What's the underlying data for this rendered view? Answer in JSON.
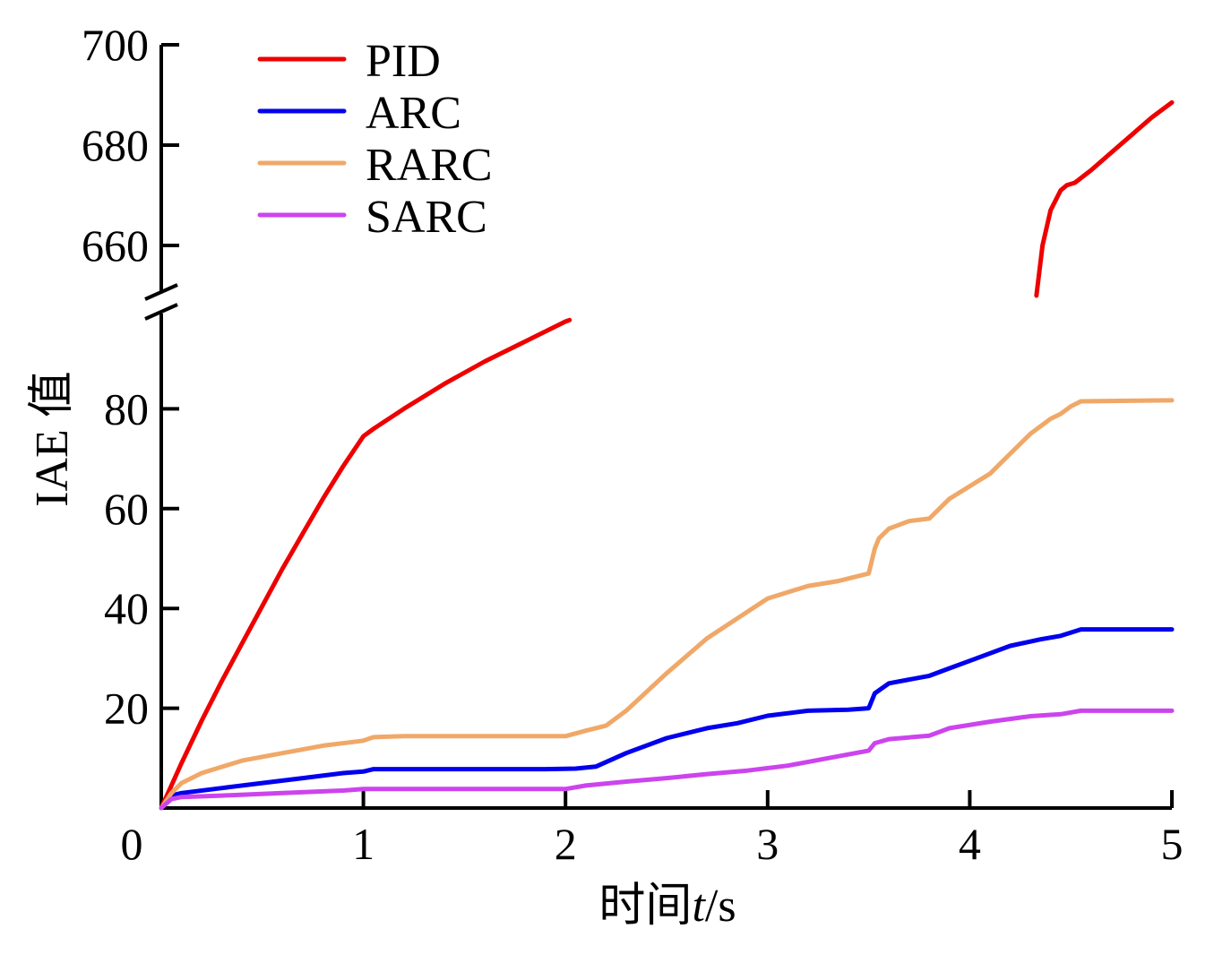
{
  "chart_data": {
    "type": "line",
    "xlabel_prefix": "时间",
    "xlabel_var": "t",
    "xlabel_suffix": "/s",
    "ylabel": "IAE 值",
    "xlim": [
      0,
      5
    ],
    "ylim_lower": [
      0,
      100
    ],
    "ylim_upper": [
      650,
      700
    ],
    "axis_break": true,
    "x_ticks": [
      0,
      1,
      2,
      3,
      4,
      5
    ],
    "x_tick_labels": [
      "0",
      "1",
      "2",
      "3",
      "4",
      "5"
    ],
    "y_ticks_lower": [
      20,
      40,
      60,
      80
    ],
    "y_tick_labels_lower": [
      "20",
      "40",
      "60",
      "80"
    ],
    "y_ticks_upper": [
      660,
      680,
      700
    ],
    "y_tick_labels_upper": [
      "660",
      "680",
      "700"
    ],
    "legend_position": "top-left",
    "series": [
      {
        "name": "PID",
        "color": "#ee0000",
        "segments": [
          [
            [
              0,
              0
            ],
            [
              0.1,
              9
            ],
            [
              0.2,
              17.5
            ],
            [
              0.3,
              25.5
            ],
            [
              0.4,
              33
            ],
            [
              0.5,
              40.5
            ],
            [
              0.6,
              48
            ],
            [
              0.7,
              55
            ],
            [
              0.8,
              62
            ],
            [
              0.9,
              68.5
            ],
            [
              1.0,
              74.5
            ],
            [
              1.05,
              76
            ],
            [
              1.2,
              80
            ],
            [
              1.4,
              85
            ],
            [
              1.6,
              89.5
            ],
            [
              1.8,
              93.5
            ],
            [
              2.0,
              97.5
            ],
            [
              2.02,
              97.8
            ]
          ],
          [
            [
              4.33,
              650
            ],
            [
              4.36,
              660
            ],
            [
              4.4,
              667
            ],
            [
              4.45,
              671
            ],
            [
              4.48,
              672
            ],
            [
              4.52,
              672.5
            ],
            [
              4.6,
              675
            ],
            [
              4.7,
              678.5
            ],
            [
              4.8,
              682
            ],
            [
              4.9,
              685.5
            ],
            [
              5.0,
              688.5
            ]
          ]
        ]
      },
      {
        "name": "ARC",
        "color": "#0000ee",
        "segments": [
          [
            [
              0,
              0
            ],
            [
              0.05,
              2.5
            ],
            [
              0.1,
              3
            ],
            [
              0.3,
              4
            ],
            [
              0.5,
              5
            ],
            [
              0.7,
              6
            ],
            [
              0.9,
              7
            ],
            [
              1.0,
              7.3
            ],
            [
              1.05,
              7.8
            ],
            [
              1.3,
              7.8
            ],
            [
              1.6,
              7.8
            ],
            [
              1.9,
              7.8
            ],
            [
              2.05,
              7.9
            ],
            [
              2.15,
              8.3
            ],
            [
              2.3,
              11
            ],
            [
              2.5,
              14
            ],
            [
              2.7,
              16
            ],
            [
              2.85,
              17
            ],
            [
              3.0,
              18.5
            ],
            [
              3.2,
              19.5
            ],
            [
              3.4,
              19.7
            ],
            [
              3.5,
              20
            ],
            [
              3.53,
              23
            ],
            [
              3.6,
              25
            ],
            [
              3.8,
              26.5
            ],
            [
              3.9,
              28
            ],
            [
              4.0,
              29.5
            ],
            [
              4.2,
              32.5
            ],
            [
              4.35,
              33.8
            ],
            [
              4.45,
              34.5
            ],
            [
              4.55,
              35.8
            ],
            [
              5.0,
              35.8
            ]
          ]
        ]
      },
      {
        "name": "RARC",
        "color": "#f0a868",
        "segments": [
          [
            [
              0,
              0
            ],
            [
              0.05,
              3
            ],
            [
              0.1,
              5
            ],
            [
              0.2,
              7
            ],
            [
              0.4,
              9.5
            ],
            [
              0.6,
              11
            ],
            [
              0.8,
              12.5
            ],
            [
              1.0,
              13.5
            ],
            [
              1.05,
              14.2
            ],
            [
              1.2,
              14.4
            ],
            [
              1.5,
              14.4
            ],
            [
              1.8,
              14.4
            ],
            [
              2.0,
              14.4
            ],
            [
              2.1,
              15.5
            ],
            [
              2.2,
              16.5
            ],
            [
              2.3,
              19.5
            ],
            [
              2.5,
              27
            ],
            [
              2.7,
              34
            ],
            [
              2.85,
              38
            ],
            [
              3.0,
              42
            ],
            [
              3.2,
              44.5
            ],
            [
              3.35,
              45.5
            ],
            [
              3.5,
              47
            ],
            [
              3.53,
              52
            ],
            [
              3.55,
              54
            ],
            [
              3.6,
              56
            ],
            [
              3.7,
              57.5
            ],
            [
              3.8,
              58
            ],
            [
              3.9,
              62
            ],
            [
              4.0,
              64.5
            ],
            [
              4.1,
              67
            ],
            [
              4.2,
              71
            ],
            [
              4.3,
              75
            ],
            [
              4.4,
              78
            ],
            [
              4.45,
              79
            ],
            [
              4.5,
              80.5
            ],
            [
              4.55,
              81.5
            ],
            [
              5.0,
              81.7
            ]
          ]
        ]
      },
      {
        "name": "SARC",
        "color": "#cc44ee",
        "segments": [
          [
            [
              0,
              0
            ],
            [
              0.05,
              1.8
            ],
            [
              0.1,
              2.2
            ],
            [
              0.3,
              2.5
            ],
            [
              0.6,
              3
            ],
            [
              0.9,
              3.5
            ],
            [
              1.0,
              3.8
            ],
            [
              1.3,
              3.8
            ],
            [
              1.6,
              3.8
            ],
            [
              1.9,
              3.8
            ],
            [
              2.0,
              3.8
            ],
            [
              2.1,
              4.5
            ],
            [
              2.3,
              5.3
            ],
            [
              2.5,
              6
            ],
            [
              2.7,
              6.8
            ],
            [
              2.9,
              7.5
            ],
            [
              3.1,
              8.5
            ],
            [
              3.3,
              10
            ],
            [
              3.5,
              11.5
            ],
            [
              3.53,
              13
            ],
            [
              3.6,
              13.8
            ],
            [
              3.8,
              14.5
            ],
            [
              3.9,
              16
            ],
            [
              4.1,
              17.3
            ],
            [
              4.3,
              18.4
            ],
            [
              4.45,
              18.8
            ],
            [
              4.55,
              19.5
            ],
            [
              5.0,
              19.5
            ]
          ]
        ]
      }
    ]
  }
}
